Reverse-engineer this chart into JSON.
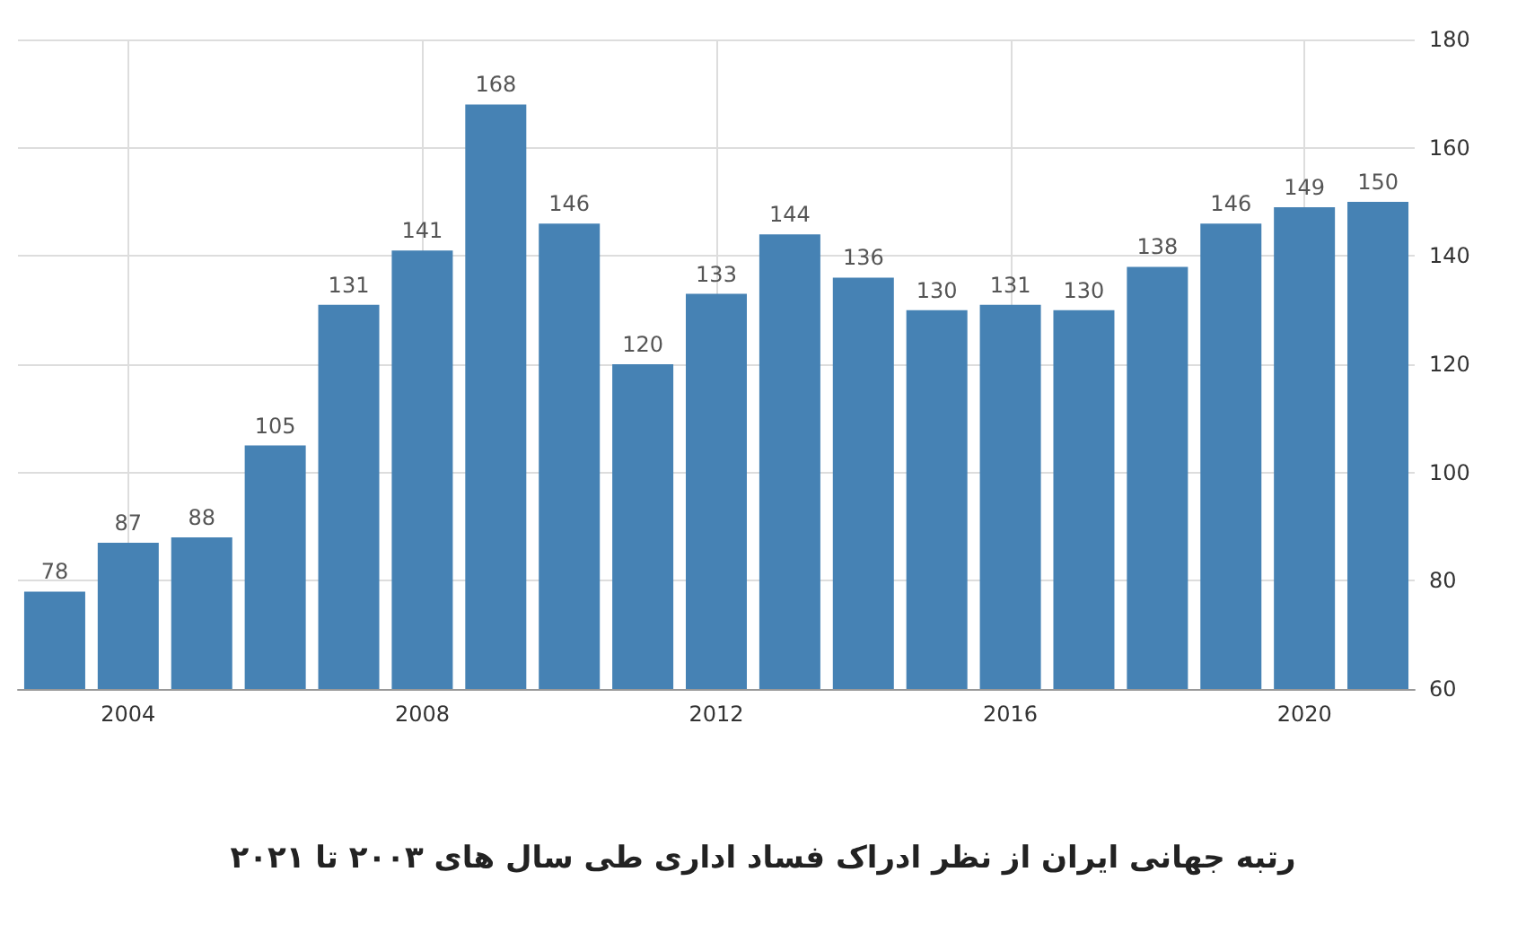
{
  "chart_data": {
    "type": "bar",
    "title": "رتبه جهانی ایران از نظر ادراک فساد اداری طی سال های ۲۰۰۳ تا ۲۰۲۱",
    "x": [
      2003,
      2004,
      2005,
      2006,
      2007,
      2008,
      2009,
      2010,
      2011,
      2012,
      2013,
      2014,
      2015,
      2016,
      2017,
      2018,
      2019,
      2020,
      2021
    ],
    "values": [
      78,
      87,
      88,
      105,
      131,
      141,
      168,
      146,
      120,
      133,
      144,
      136,
      130,
      131,
      130,
      138,
      146,
      149,
      150
    ],
    "color": "#4682b4",
    "xlim": [
      2002.5,
      2021.5
    ],
    "xticks": [
      2004,
      2008,
      2012,
      2016,
      2020
    ],
    "ylim": [
      60,
      180
    ],
    "yticks": [
      60,
      80,
      100,
      120,
      140,
      160,
      180
    ],
    "grid": true,
    "data_labels": true
  }
}
